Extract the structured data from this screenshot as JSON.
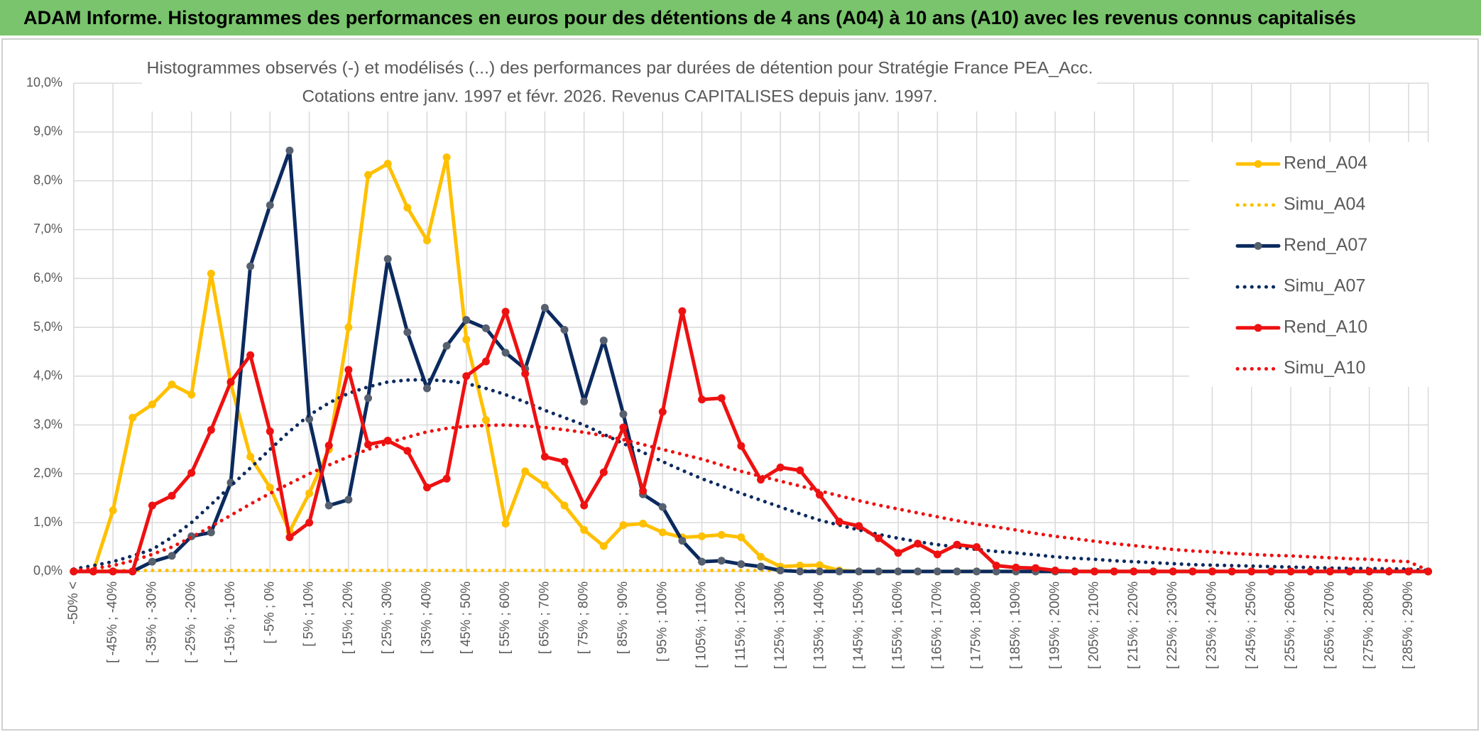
{
  "header": {
    "title": "ADAM Informe. Histogrammes des performances en euros pour des détentions de 4 ans (A04) à 10 ans (A10) avec les revenus connus capitalisés"
  },
  "chart_data": {
    "type": "line",
    "title": "Histogrammes observés (-) et modélisés (...) des performances par durées de détention pour Stratégie France PEA_Acc.",
    "subtitle": "Cotations entre janv. 1997 et févr. 2026. Revenus CAPITALISES depuis janv. 1997.",
    "categories": [
      "-50% <",
      null,
      "[ -45% ; -40%",
      null,
      "[ -35% ; -30%",
      null,
      "[ -25% ; -20%",
      null,
      "[ -15% ; -10%",
      null,
      "[ -5% ; 0%",
      null,
      "[ 5% ; 10%",
      null,
      "[ 15% ; 20%",
      null,
      "[ 25% ; 30%",
      null,
      "[ 35% ; 40%",
      null,
      "[ 45% ; 50%",
      null,
      "[ 55% ; 60%",
      null,
      "[ 65% ; 70%",
      null,
      "[ 75% ; 80%",
      null,
      "[ 85% ; 90%",
      null,
      "[ 95% ; 100%",
      null,
      "[ 105% ; 110%",
      null,
      "[ 115% ; 120%",
      null,
      "[ 125% ; 130%",
      null,
      "[ 135% ; 140%",
      null,
      "[ 145% ; 150%",
      null,
      "[ 155% ; 160%",
      null,
      "[ 165% ; 170%",
      null,
      "[ 175% ; 180%",
      null,
      "[ 185% ; 190%",
      null,
      "[ 195% ; 200%",
      null,
      "[ 205% ; 210%",
      null,
      "[ 215% ; 220%",
      null,
      "[ 225% ; 230%",
      null,
      "[ 235% ; 240%",
      null,
      "[ 245% ; 250%",
      null,
      "[ 255% ; 260%",
      null,
      "[ 265% ; 270%",
      null,
      "[ 275% ; 280%",
      null,
      "[ 285% ; 290%",
      null
    ],
    "ylim": [
      0,
      10
    ],
    "yticks": [
      {
        "value": 0,
        "label": "0,0%"
      },
      {
        "value": 1,
        "label": "1,0%"
      },
      {
        "value": 2,
        "label": "2,0%"
      },
      {
        "value": 3,
        "label": "3,0%"
      },
      {
        "value": 4,
        "label": "4,0%"
      },
      {
        "value": 5,
        "label": "5,0%"
      },
      {
        "value": 6,
        "label": "6,0%"
      },
      {
        "value": 7,
        "label": "7,0%"
      },
      {
        "value": 8,
        "label": "8,0%"
      },
      {
        "value": 9,
        "label": "9,0%"
      },
      {
        "value": 10,
        "label": "10,0%"
      }
    ],
    "grid": true,
    "legend": "right",
    "series": [
      {
        "name": "Rend_A04",
        "color": "#ffc000",
        "marker_color": "#ffc000",
        "line_style": "solid",
        "markers": true,
        "values": [
          0,
          0,
          1.25,
          3.15,
          3.42,
          3.83,
          3.62,
          6.1,
          3.85,
          2.35,
          1.72,
          0.82,
          1.6,
          2.5,
          5.0,
          8.12,
          8.35,
          7.45,
          6.78,
          8.48,
          4.75,
          3.1,
          0.98,
          2.05,
          1.77,
          1.35,
          0.85,
          0.52,
          0.95,
          0.98,
          0.8,
          0.7,
          0.72,
          0.75,
          0.7,
          0.3,
          0.1,
          0.12,
          0.13,
          0.02,
          0,
          0,
          0,
          0,
          0,
          0,
          0,
          0,
          0,
          0,
          0,
          0,
          0,
          0,
          0,
          0,
          0,
          0,
          0,
          0,
          0,
          0,
          0,
          0,
          0,
          0,
          0,
          0,
          0,
          0
        ]
      },
      {
        "name": "Simu_A04",
        "color": "#ffc000",
        "line_style": "dotted",
        "markers": false,
        "values": [
          0.02,
          0.02,
          0.02,
          0.02,
          0.02,
          0.02,
          0.02,
          0.02,
          0.02,
          0.02,
          0.02,
          0.02,
          0.02,
          0.02,
          0.02,
          0.02,
          0.02,
          0.02,
          0.02,
          0.02,
          0.02,
          0.02,
          0.02,
          0.02,
          0.02,
          0.02,
          0.02,
          0.02,
          0.02,
          0.02,
          0.02,
          0.02,
          0.02,
          0.02,
          0.02,
          0.02,
          0.02,
          0.02,
          0.02,
          0.02,
          0,
          0,
          0,
          0,
          0,
          0,
          0,
          0,
          0,
          0,
          0,
          0,
          0,
          0,
          0,
          0,
          0,
          0,
          0,
          0,
          0,
          0,
          0,
          0,
          0,
          0,
          0,
          0,
          0,
          0
        ]
      },
      {
        "name": "Rend_A07",
        "color": "#0b2a5e",
        "marker_color": "#56606e",
        "line_style": "solid",
        "markers": true,
        "values": [
          0,
          0,
          0,
          0,
          0.2,
          0.32,
          0.72,
          0.8,
          1.82,
          6.25,
          7.5,
          8.62,
          3.12,
          1.35,
          1.47,
          3.55,
          6.4,
          4.9,
          3.75,
          4.62,
          5.15,
          4.98,
          4.48,
          4.15,
          5.4,
          4.95,
          3.48,
          4.73,
          3.22,
          1.58,
          1.32,
          0.63,
          0.2,
          0.22,
          0.15,
          0.1,
          0.02,
          0,
          0,
          0,
          0,
          0,
          0,
          0,
          0,
          0,
          0,
          0,
          0,
          0,
          0,
          0,
          0,
          0,
          0,
          0,
          0,
          0,
          0,
          0,
          0,
          0,
          0,
          0,
          0,
          0,
          0,
          0,
          0,
          0
        ]
      },
      {
        "name": "Simu_A07",
        "color": "#0b2a5e",
        "line_style": "dotted",
        "markers": false,
        "values": [
          0.05,
          0.12,
          0.2,
          0.32,
          0.45,
          0.7,
          1.0,
          1.37,
          1.75,
          2.12,
          2.5,
          2.87,
          3.2,
          3.45,
          3.65,
          3.78,
          3.88,
          3.92,
          3.93,
          3.9,
          3.85,
          3.75,
          3.62,
          3.47,
          3.3,
          3.15,
          3.0,
          2.81,
          2.62,
          2.44,
          2.25,
          2.07,
          1.9,
          1.75,
          1.6,
          1.46,
          1.32,
          1.18,
          1.05,
          0.95,
          0.85,
          0.76,
          0.68,
          0.61,
          0.55,
          0.5,
          0.45,
          0.41,
          0.38,
          0.34,
          0.3,
          0.27,
          0.25,
          0.22,
          0.2,
          0.18,
          0.16,
          0.14,
          0.13,
          0.12,
          0.11,
          0.1,
          0.09,
          0.08,
          0.07,
          0.065,
          0.06,
          0.055,
          0.05,
          0.02
        ]
      },
      {
        "name": "Rend_A10",
        "color": "#ee1111",
        "marker_color": "#ee1111",
        "line_style": "solid",
        "markers": true,
        "values": [
          0,
          0,
          0,
          0,
          1.35,
          1.55,
          2.02,
          2.9,
          3.88,
          4.43,
          2.87,
          0.7,
          1.0,
          2.58,
          4.13,
          2.6,
          2.68,
          2.47,
          1.72,
          1.9,
          4.0,
          4.3,
          5.32,
          4.05,
          2.35,
          2.25,
          1.35,
          2.03,
          2.95,
          1.65,
          3.27,
          5.33,
          3.52,
          3.55,
          2.57,
          1.88,
          2.13,
          2.07,
          1.57,
          1.02,
          0.93,
          0.68,
          0.38,
          0.57,
          0.35,
          0.55,
          0.5,
          0.12,
          0.08,
          0.07,
          0.02,
          0,
          0,
          0,
          0,
          0,
          0,
          0,
          0,
          0,
          0,
          0,
          0,
          0,
          0,
          0,
          0,
          0,
          0,
          0
        ]
      },
      {
        "name": "Simu_A10",
        "color": "#ee1111",
        "line_style": "dotted",
        "markers": false,
        "values": [
          0.02,
          0.06,
          0.12,
          0.22,
          0.35,
          0.5,
          0.7,
          0.92,
          1.15,
          1.38,
          1.6,
          1.8,
          2.0,
          2.18,
          2.35,
          2.5,
          2.63,
          2.75,
          2.86,
          2.93,
          2.97,
          2.99,
          3.0,
          2.98,
          2.95,
          2.9,
          2.85,
          2.78,
          2.7,
          2.6,
          2.5,
          2.4,
          2.3,
          2.18,
          2.05,
          1.95,
          1.85,
          1.75,
          1.65,
          1.55,
          1.45,
          1.36,
          1.28,
          1.2,
          1.12,
          1.04,
          0.97,
          0.91,
          0.85,
          0.78,
          0.72,
          0.67,
          0.62,
          0.57,
          0.53,
          0.49,
          0.45,
          0.42,
          0.4,
          0.37,
          0.35,
          0.33,
          0.32,
          0.3,
          0.28,
          0.26,
          0.25,
          0.22,
          0.2,
          0.02
        ]
      }
    ]
  }
}
